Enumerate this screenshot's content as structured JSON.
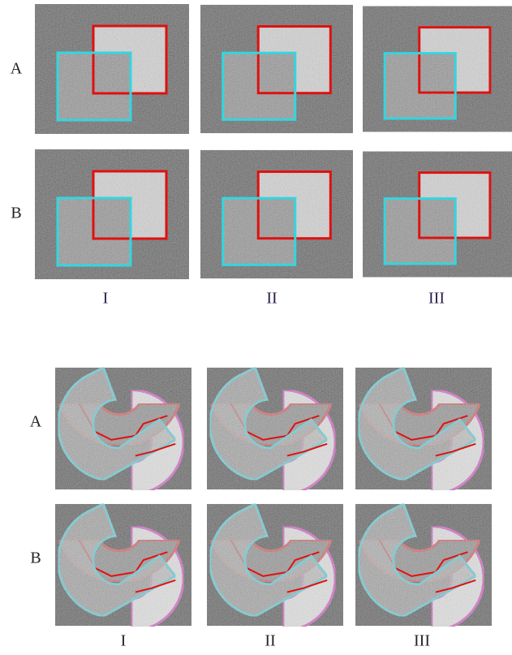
{
  "panels": [
    {
      "rows": [
        "A",
        "B"
      ],
      "columns": [
        "I",
        "II",
        "III"
      ]
    },
    {
      "rows": [
        "A",
        "B"
      ],
      "columns": [
        "I",
        "II",
        "III"
      ]
    }
  ]
}
